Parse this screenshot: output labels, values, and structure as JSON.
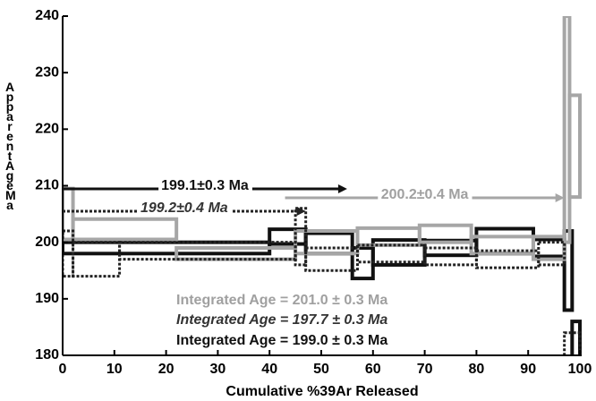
{
  "chart_data": {
    "type": "age-spectrum",
    "xlabel": "Cumulative %39Ar Released",
    "ylabel": "Apparent Age Ma",
    "xlim": [
      0,
      100
    ],
    "xticks": [
      0,
      10,
      20,
      30,
      40,
      50,
      60,
      70,
      80,
      90,
      100
    ],
    "ylim": [
      180,
      240
    ],
    "yticks": [
      180,
      190,
      200,
      210,
      220,
      230,
      240
    ],
    "series": [
      {
        "color": "#111111",
        "line_style": "solid",
        "bins": [
          0,
          40,
          47,
          56,
          60,
          70,
          80,
          91,
          97,
          98.5,
          100
        ],
        "values": [
          199,
          201,
          199.8,
          196.3,
          198.2,
          199,
          200.2,
          199,
          195,
          182
        ],
        "errors": [
          1,
          1.3,
          1.8,
          2.7,
          2.2,
          1.3,
          2.2,
          1.5,
          7,
          4
        ],
        "plateau": [
          0,
          55
        ],
        "plateau_label": "199.1±0.3  Ma",
        "integrated_label": "Integrated Age = 199.0  ±  0.3  Ma"
      },
      {
        "color": "#a6a6a6",
        "line_style": "solid",
        "bins": [
          0,
          2,
          22,
          45,
          57,
          69,
          79,
          91,
          97,
          98,
          100
        ],
        "values": [
          205,
          202.3,
          198,
          200,
          201,
          201.5,
          199.5,
          199,
          220,
          217
        ],
        "errors": [
          4.5,
          1.8,
          1,
          2,
          1.5,
          1.5,
          1.5,
          2,
          20,
          9
        ],
        "plateau": [
          43,
          97
        ],
        "plateau_label": "200.2±0.4  Ma",
        "integrated_label": "Integrated Age = 201.0  ±  0.3  Ma"
      },
      {
        "color": "#222222",
        "line_style": "dotted",
        "bins": [
          0,
          2,
          11,
          45,
          47,
          57,
          70,
          80,
          92,
          97,
          100
        ],
        "values": [
          198,
          197,
          198.5,
          201,
          197,
          198,
          197.5,
          197,
          198,
          181
        ],
        "errors": [
          4,
          3,
          1.5,
          5,
          2,
          1.5,
          1.5,
          1.5,
          2,
          3
        ],
        "plateau": [
          0,
          47
        ],
        "plateau_label": "199.2±0.4  Ma",
        "integrated_label": "Integrated Age = 197.7  ±  0.3  Ma"
      }
    ]
  }
}
